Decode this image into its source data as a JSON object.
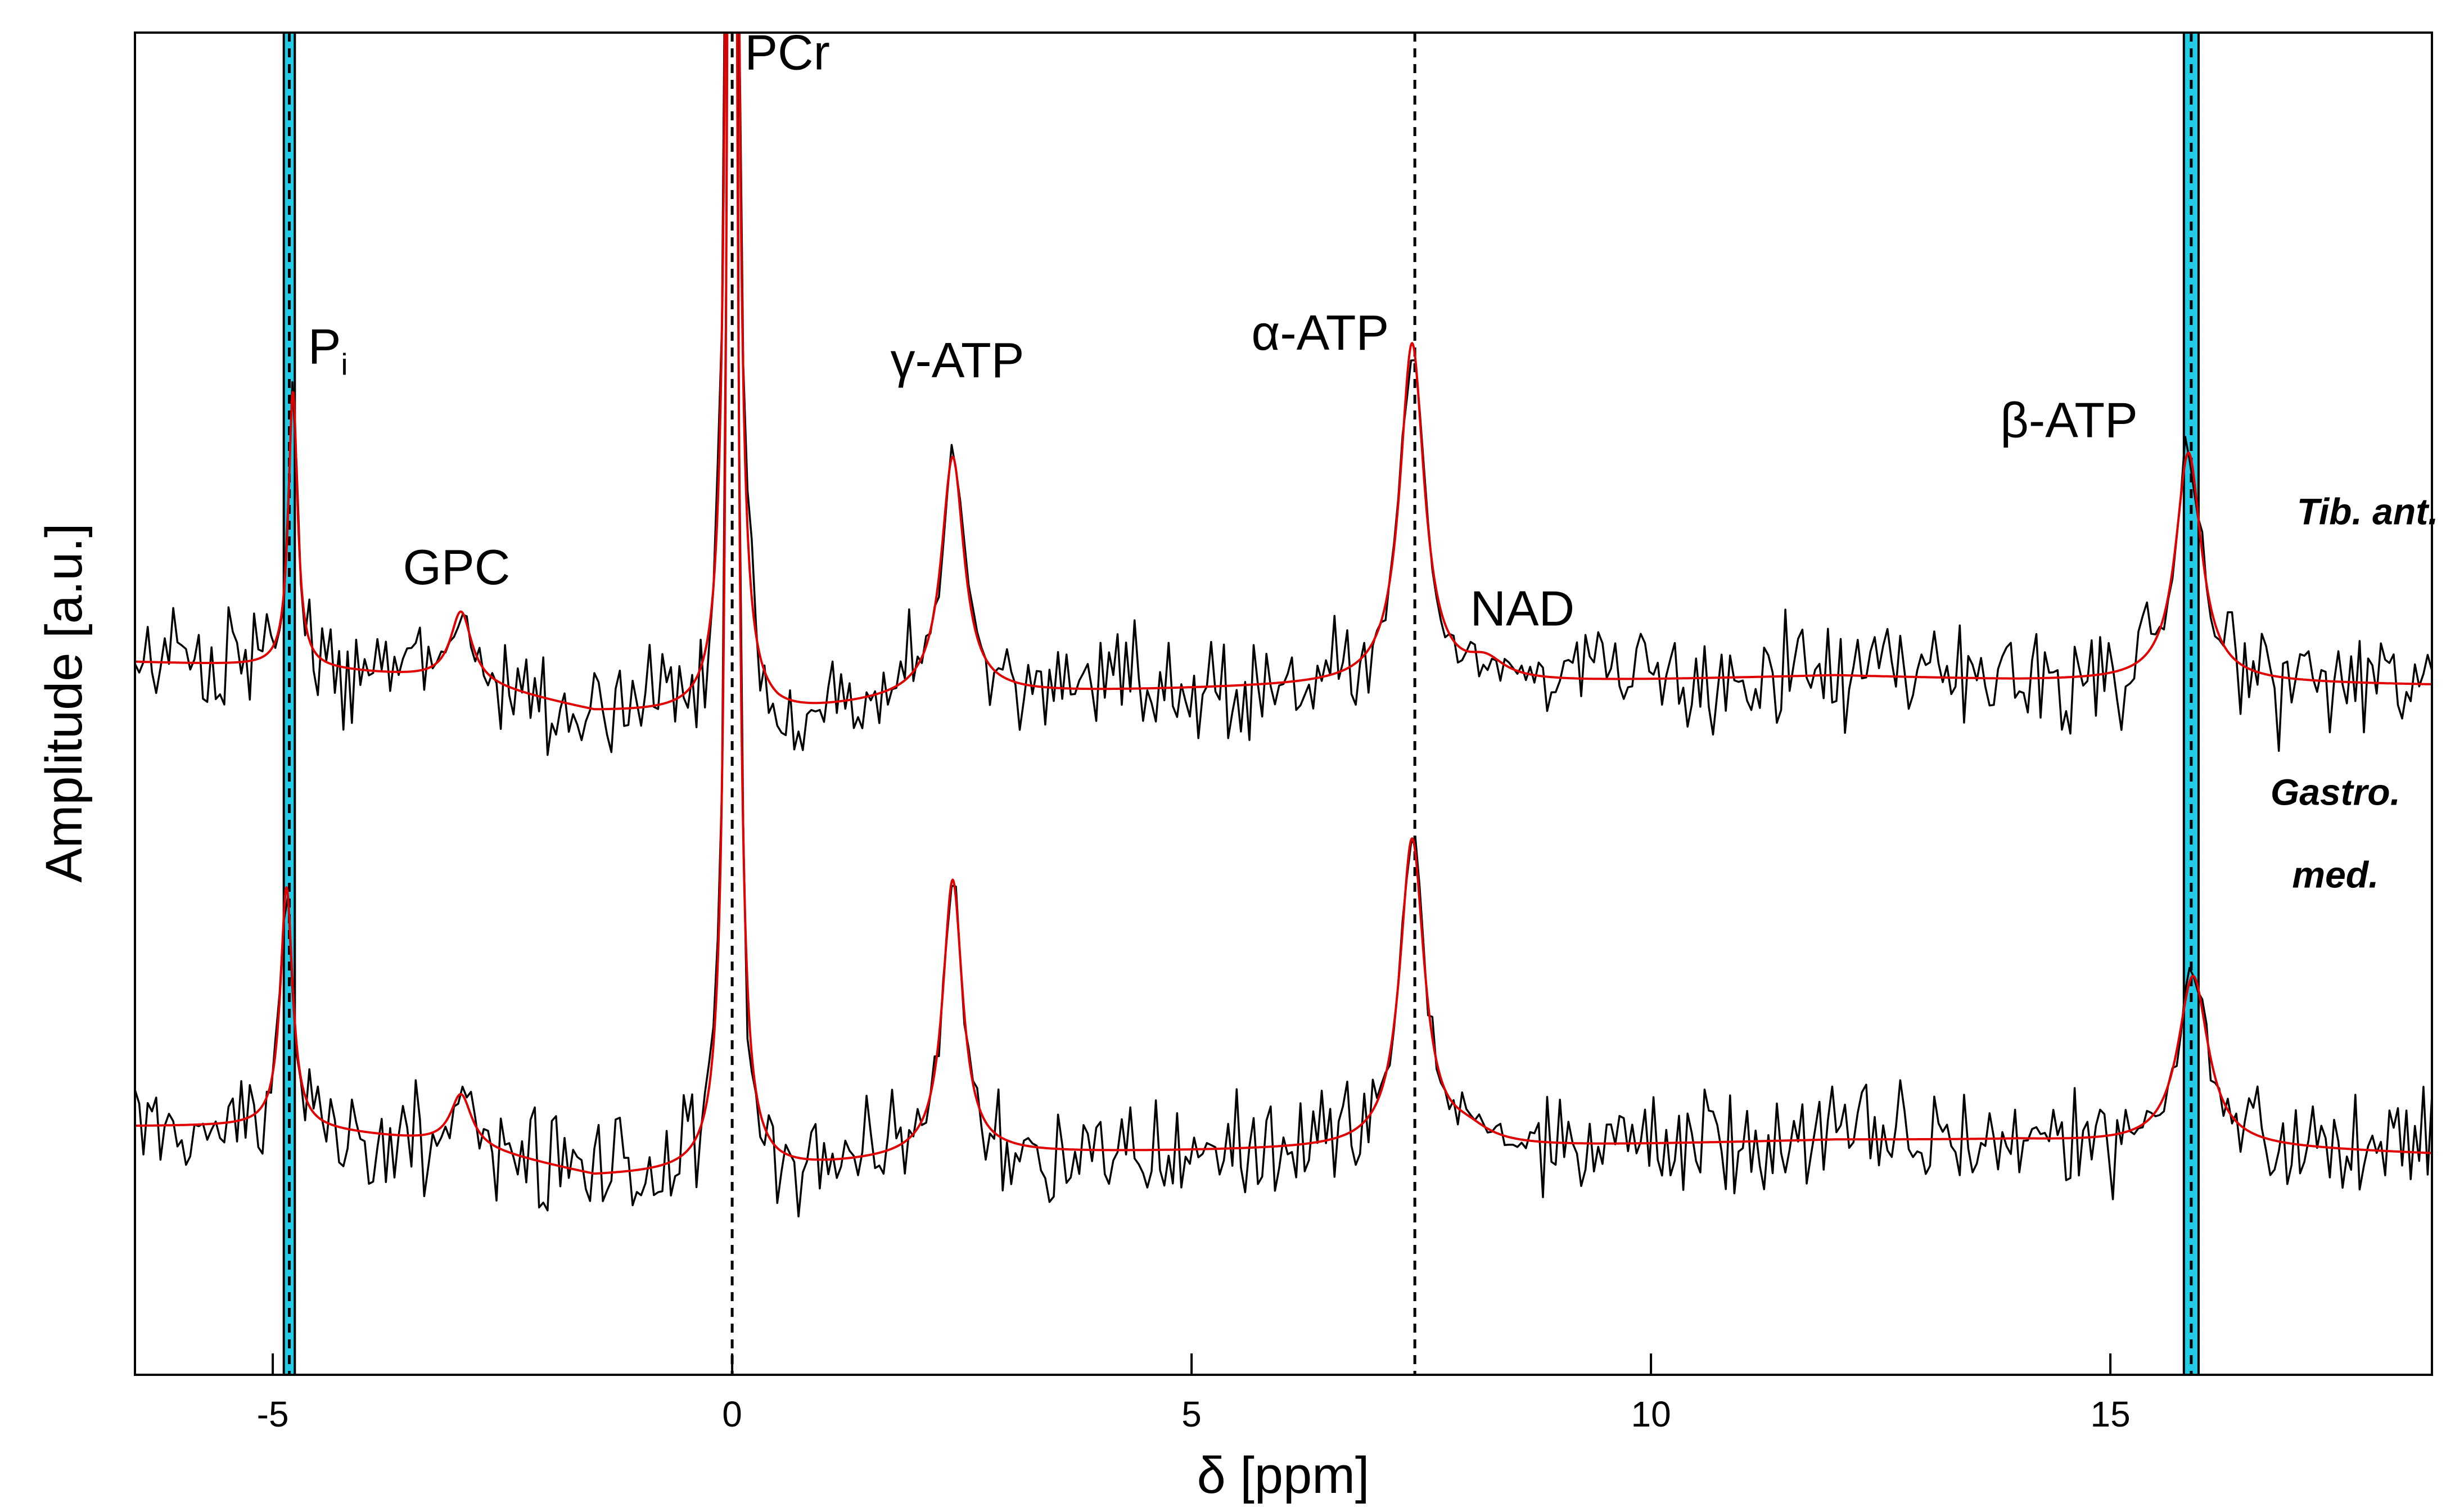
{
  "chart_data": {
    "type": "line",
    "title": "",
    "xlabel": "δ [ppm]",
    "ylabel": "Amplitude [a.u.]",
    "xlim": [
      -6.5,
      18.5
    ],
    "ylim": [
      -1.2,
      13.4
    ],
    "x_ticks": [
      -5,
      0,
      5,
      10,
      15
    ],
    "x_tick_labels": [
      "-5",
      "0",
      "5",
      "10",
      "15"
    ],
    "grid": false,
    "legend": "none",
    "noise_seed": 17,
    "series_labels": [
      {
        "text": "Tib. ant.",
        "x": 17.8,
        "y": 0
      },
      {
        "text": "Gastro.",
        "x": 17.45,
        "y": 0
      },
      {
        "text": "med.",
        "x": 17.45,
        "y": 0
      }
    ],
    "series": [
      {
        "name": "Tib. ant.",
        "offset": 6.3,
        "noise": 0.3,
        "baseline": [
          [
            -6.5,
            0.25
          ],
          [
            -4.9,
            0.2
          ],
          [
            -3.0,
            0.05
          ],
          [
            -1.5,
            -0.3
          ],
          [
            0.5,
            -0.35
          ],
          [
            2.0,
            -0.15
          ],
          [
            3.0,
            -0.1
          ],
          [
            7.0,
            0.0
          ],
          [
            8.0,
            0.0
          ],
          [
            12.0,
            0.1
          ],
          [
            14.0,
            0.05
          ],
          [
            18.5,
            0.0
          ]
        ],
        "peaks": [
          {
            "name": "Pi",
            "center": -4.78,
            "height": 3.0,
            "width": 0.06
          },
          {
            "name": "GPC",
            "center": -2.95,
            "height": 0.75,
            "width": 0.14
          },
          {
            "name": "PCr",
            "center": 0.0,
            "height": 30.0,
            "width": 0.045
          },
          {
            "name": "γ-ATP",
            "center": 2.4,
            "height": 2.6,
            "width": 0.15
          },
          {
            "name": "α-ATP",
            "center": 7.4,
            "height": 3.7,
            "width": 0.16
          },
          {
            "name": "NAD",
            "center": 8.2,
            "height": 0.2,
            "width": 0.25
          },
          {
            "name": "β-ATP",
            "center": 15.85,
            "height": 2.5,
            "width": 0.17
          }
        ]
      },
      {
        "name": "Gastro. med.",
        "offset": 1.5,
        "noise": 0.3,
        "baseline": [
          [
            -6.5,
            0.0
          ],
          [
            -4.9,
            0.0
          ],
          [
            -3.0,
            -0.2
          ],
          [
            -1.5,
            -0.55
          ],
          [
            0.5,
            -0.5
          ],
          [
            2.0,
            -0.35
          ],
          [
            3.0,
            -0.3
          ],
          [
            7.0,
            -0.25
          ],
          [
            8.0,
            -0.25
          ],
          [
            12.0,
            -0.15
          ],
          [
            14.0,
            -0.15
          ],
          [
            18.5,
            -0.3
          ]
        ],
        "peaks": [
          {
            "name": "Pi",
            "center": -4.85,
            "height": 2.6,
            "width": 0.08
          },
          {
            "name": "GPC",
            "center": -2.95,
            "height": 0.55,
            "width": 0.14
          },
          {
            "name": "PCr",
            "center": 0.0,
            "height": 30.0,
            "width": 0.045
          },
          {
            "name": "γ-ATP",
            "center": 2.4,
            "height": 3.0,
            "width": 0.13
          },
          {
            "name": "α-ATP",
            "center": 7.4,
            "height": 3.35,
            "width": 0.16
          },
          {
            "name": "NAD",
            "center": 8.0,
            "height": 0.15,
            "width": 0.3
          },
          {
            "name": "β-ATP",
            "center": 15.9,
            "height": 1.85,
            "width": 0.2
          }
        ]
      }
    ],
    "reference_lines": [
      {
        "x": -4.82,
        "style": "dashed",
        "band": [
          -4.88,
          -4.76
        ],
        "band_color": "#22cce6"
      },
      {
        "x": 0.0,
        "style": "dashed"
      },
      {
        "x": 7.43,
        "style": "dashed"
      },
      {
        "x": 15.88,
        "style": "dashed",
        "band": [
          15.8,
          15.96
        ],
        "band_color": "#22cce6"
      }
    ],
    "peak_labels": [
      {
        "text": "P",
        "sub": "i",
        "x": -4.4,
        "y": 9.8
      },
      {
        "text": "GPC",
        "x": -3.0,
        "y": 7.4
      },
      {
        "text": "PCr",
        "x": 0.6,
        "y": 13.0
      },
      {
        "text": "γ-ATP",
        "x": 2.45,
        "y": 9.65
      },
      {
        "text": "α-ATP",
        "x": 6.4,
        "y": 9.95
      },
      {
        "text": "NAD",
        "x": 8.6,
        "y": 6.95
      },
      {
        "text": "β-ATP",
        "x": 14.55,
        "y": 9.0
      }
    ],
    "colors": {
      "data": "#000000",
      "fit": "#e00000",
      "band": "#22cce6",
      "axis": "#000000"
    }
  }
}
